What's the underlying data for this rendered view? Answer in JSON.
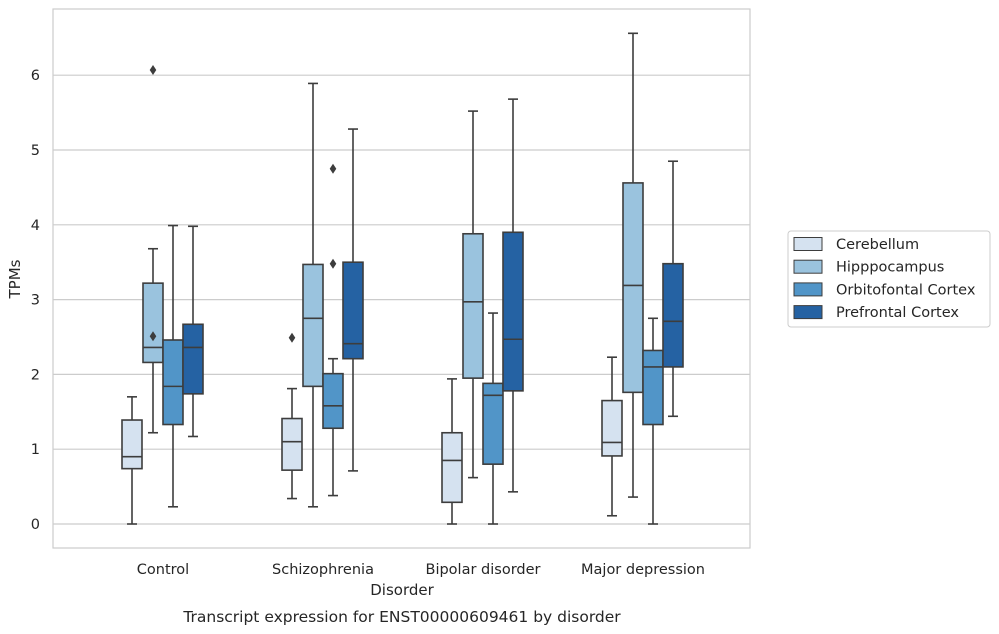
{
  "chart_data": {
    "type": "boxplot",
    "title": "Transcript expression for ENST00000609461 by disorder",
    "xlabel": "Disorder",
    "ylabel": "TPMs",
    "ylim": [
      -0.3,
      6.9
    ],
    "yticks": [
      0,
      1,
      2,
      3,
      4,
      5,
      6
    ],
    "grid": true,
    "legend_position": "right",
    "categories": [
      "Control",
      "Schizophrenia",
      "Bipolar disorder",
      "Major depression"
    ],
    "series": [
      {
        "name": "Cerebellum",
        "color": "#d5e2f0",
        "boxes": [
          {
            "whislo": 0.0,
            "q1": 0.74,
            "med": 0.9,
            "q3": 1.39,
            "whishi": 1.7,
            "fliers": []
          },
          {
            "whislo": 0.34,
            "q1": 0.72,
            "med": 1.1,
            "q3": 1.41,
            "whishi": 1.81,
            "fliers": [
              2.49
            ]
          },
          {
            "whislo": 0.0,
            "q1": 0.29,
            "med": 0.85,
            "q3": 1.22,
            "whishi": 1.94,
            "fliers": []
          },
          {
            "whislo": 0.11,
            "q1": 0.91,
            "med": 1.09,
            "q3": 1.65,
            "whishi": 2.23,
            "fliers": []
          }
        ]
      },
      {
        "name": "Hipppocampus",
        "color": "#9ac3de",
        "boxes": [
          {
            "whislo": 1.22,
            "q1": 2.16,
            "med": 2.36,
            "q3": 3.22,
            "whishi": 3.68,
            "fliers": [
              2.51,
              6.07
            ]
          },
          {
            "whislo": 0.23,
            "q1": 1.84,
            "med": 2.75,
            "q3": 3.47,
            "whishi": 5.89,
            "fliers": []
          },
          {
            "whislo": 0.62,
            "q1": 1.95,
            "med": 2.97,
            "q3": 3.88,
            "whishi": 5.52,
            "fliers": []
          },
          {
            "whislo": 0.36,
            "q1": 1.76,
            "med": 3.19,
            "q3": 4.56,
            "whishi": 6.56,
            "fliers": []
          }
        ]
      },
      {
        "name": "Orbitofontal Cortex",
        "color": "#5195c8",
        "boxes": [
          {
            "whislo": 0.23,
            "q1": 1.33,
            "med": 1.84,
            "q3": 2.46,
            "whishi": 3.99,
            "fliers": []
          },
          {
            "whislo": 0.38,
            "q1": 1.28,
            "med": 1.58,
            "q3": 2.01,
            "whishi": 2.21,
            "fliers": [
              3.48,
              4.75
            ]
          },
          {
            "whislo": 0.0,
            "q1": 0.8,
            "med": 1.72,
            "q3": 1.88,
            "whishi": 2.82,
            "fliers": []
          },
          {
            "whislo": 0.0,
            "q1": 1.33,
            "med": 2.1,
            "q3": 2.32,
            "whishi": 2.75,
            "fliers": []
          }
        ]
      },
      {
        "name": "Prefrontal Cortex",
        "color": "#2562a3",
        "boxes": [
          {
            "whislo": 1.17,
            "q1": 1.74,
            "med": 2.36,
            "q3": 2.67,
            "whishi": 3.98,
            "fliers": []
          },
          {
            "whislo": 0.71,
            "q1": 2.21,
            "med": 2.41,
            "q3": 3.5,
            "whishi": 5.28,
            "fliers": []
          },
          {
            "whislo": 0.43,
            "q1": 1.78,
            "med": 2.47,
            "q3": 3.9,
            "whishi": 5.68,
            "fliers": []
          },
          {
            "whislo": 1.44,
            "q1": 2.1,
            "med": 2.71,
            "q3": 3.48,
            "whishi": 4.85,
            "fliers": []
          }
        ]
      }
    ]
  }
}
